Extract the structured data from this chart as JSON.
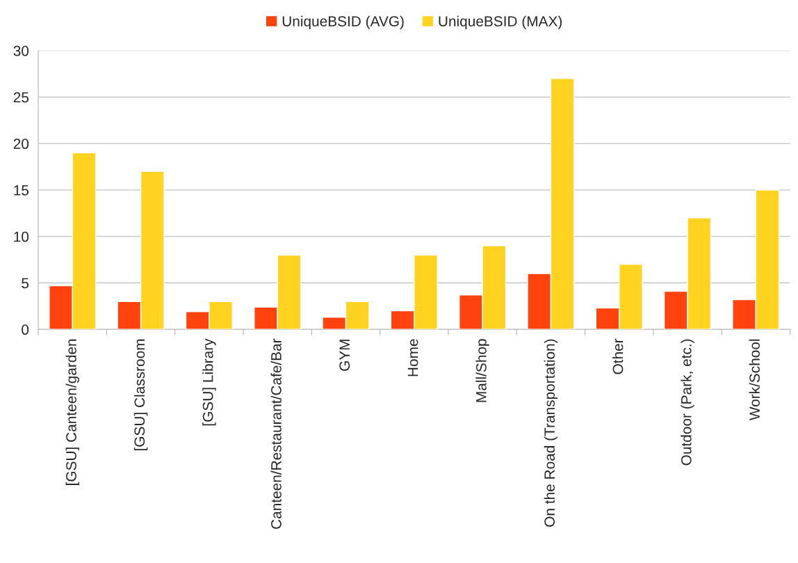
{
  "chart_data": {
    "type": "bar",
    "categories": [
      "[GSU] Canteen/garden",
      "[GSU] Classroom",
      "[GSU] Library",
      "Canteen/Restaurant/Cafe/Bar",
      "GYM",
      "Home",
      "Mall/Shop",
      "On the Road (Transportation)",
      "Other",
      "Outdoor (Park, etc.)",
      "Work/School"
    ],
    "series": [
      {
        "name": "UniqueBSID (AVG)",
        "color": "#ff420e",
        "values": [
          4.7,
          3.0,
          1.9,
          2.4,
          1.3,
          2.0,
          3.7,
          6.0,
          2.3,
          4.1,
          3.2
        ]
      },
      {
        "name": "UniqueBSID (MAX)",
        "color": "#ffd320",
        "values": [
          19,
          17,
          3,
          8,
          3,
          8,
          9,
          27,
          7,
          12,
          15
        ]
      }
    ],
    "ylim": [
      0,
      30
    ],
    "yticks": [
      0,
      5,
      10,
      15,
      20,
      25,
      30
    ],
    "grid": "y",
    "legend": "top"
  }
}
